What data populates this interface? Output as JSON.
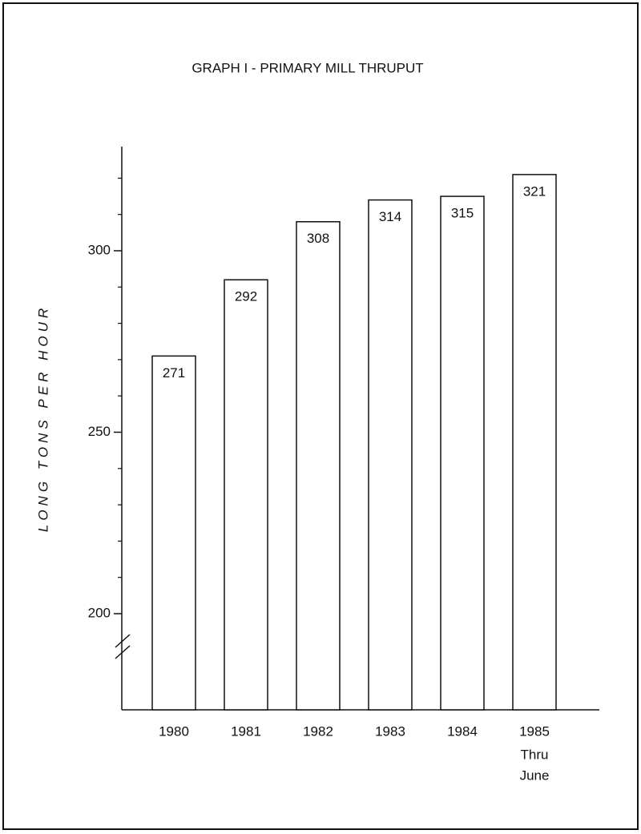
{
  "chart_data": {
    "type": "bar",
    "title": "GRAPH I - PRIMARY MILL THRUPUT",
    "y_label": "LONG TONS PER HOUR",
    "categories": [
      "1980",
      "1981",
      "1982",
      "1983",
      "1984",
      "1985"
    ],
    "category_note": [
      "Thru",
      "June"
    ],
    "values": [
      271,
      292,
      308,
      314,
      315,
      321
    ],
    "color": "#ffffff",
    "ylim": [
      173.5,
      328.7
    ],
    "yticks": [
      200,
      250,
      300
    ],
    "yminorticks": [
      210,
      220,
      230,
      240,
      260,
      270,
      280,
      290,
      310,
      320
    ],
    "axis_break": true
  }
}
